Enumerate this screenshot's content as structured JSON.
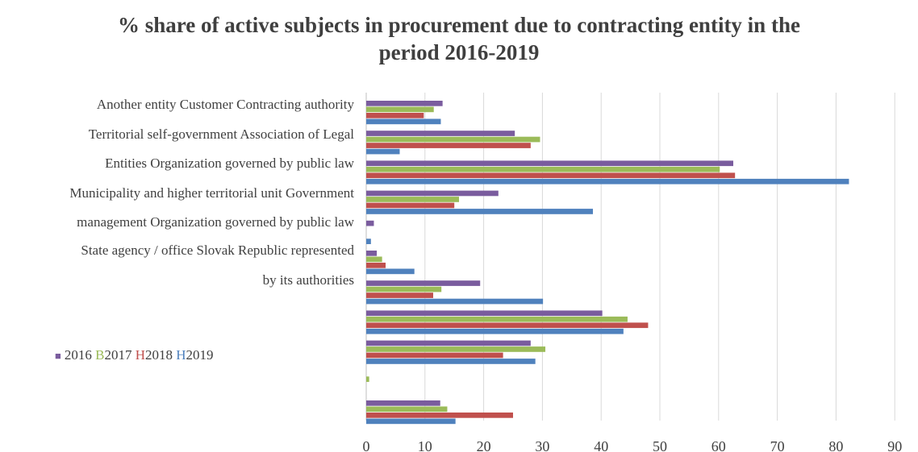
{
  "chart_data": {
    "type": "bar",
    "orientation": "horizontal",
    "title_line1": "% share of active subjects in procurement due to contracting entity in the",
    "title_line2": "period 2016-2019",
    "category_labels": [
      "Another entity Customer Contracting authority",
      "Territorial self-government Association of Legal",
      "Entities Organization governed by public law",
      "Municipality and higher territorial unit Government",
      "management Organization governed by public law",
      "State agency / office Slovak Republic represented",
      "by its authorities"
    ],
    "xlim": [
      0,
      90
    ],
    "x_ticks": [
      "0",
      "10",
      "20",
      "30",
      "40",
      "50",
      "60",
      "70",
      "80",
      "90"
    ],
    "grid": true,
    "legend_items": [
      {
        "marker": "■",
        "marker_color": "#7a5c9e",
        "prefix": "",
        "prefix_color": "#404040",
        "text": "2016"
      },
      {
        "marker": "",
        "marker_color": "#9bbb59",
        "prefix": "B",
        "prefix_color": "#9bbb59",
        "text": "2017"
      },
      {
        "marker": "",
        "marker_color": "#c0504d",
        "prefix": "H",
        "prefix_color": "#c0504d",
        "text": "2018"
      },
      {
        "marker": "",
        "marker_color": "#4f81bd",
        "prefix": "H",
        "prefix_color": "#4f81bd",
        "text": "2019"
      }
    ],
    "series": [
      {
        "name": "2016",
        "color": "#7a5c9e",
        "values": [
          13,
          25.3,
          62.5,
          22.5,
          1.3,
          1.8,
          19.4,
          40.2,
          28,
          0,
          12.6
        ]
      },
      {
        "name": "2017",
        "color": "#9bbb59",
        "values": [
          11.5,
          29.6,
          60.2,
          15.8,
          0,
          2.7,
          12.8,
          44.5,
          30.5,
          0.5,
          13.8
        ]
      },
      {
        "name": "2018",
        "color": "#c0504d",
        "values": [
          9.8,
          28,
          62.8,
          15,
          0,
          3.3,
          11.4,
          48,
          23.3,
          0,
          25
        ]
      },
      {
        "name": "2019",
        "color": "#4f81bd",
        "values": [
          12.7,
          5.7,
          82.2,
          38.6,
          0.8,
          8.2,
          30.1,
          43.8,
          28.8,
          0,
          15.2
        ]
      }
    ]
  }
}
